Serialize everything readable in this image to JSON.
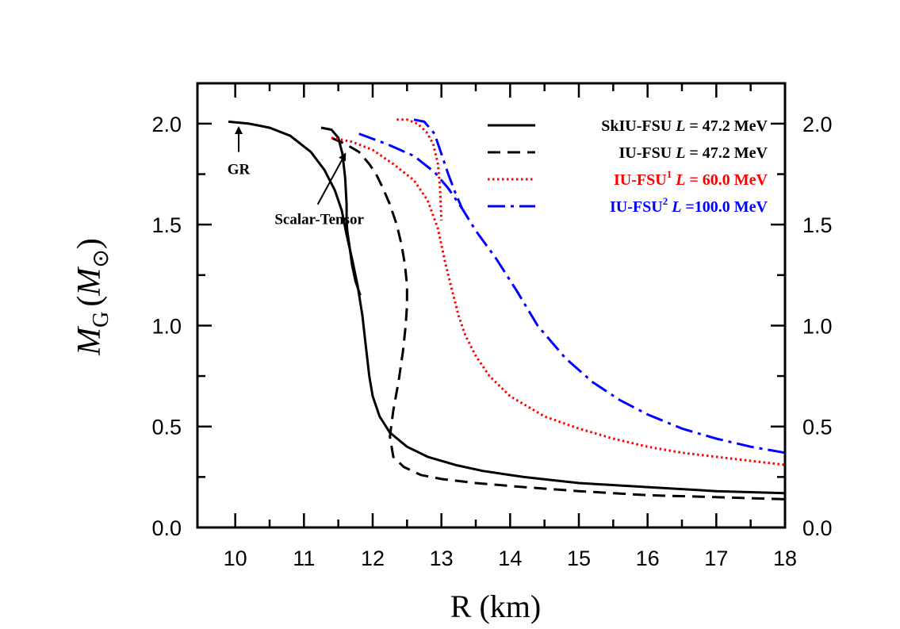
{
  "chart_data": {
    "type": "line",
    "title": "",
    "xlabel": "R (km)",
    "ylabel_main": "M",
    "ylabel_sub": "G",
    "ylabel_unit_open": "(",
    "ylabel_unit_main": "M",
    "ylabel_unit_symbol": "⊙",
    "ylabel_unit_close": ")",
    "xlim": [
      9.45,
      18
    ],
    "ylim": [
      0,
      2.2
    ],
    "xticks": [
      10,
      11,
      12,
      13,
      14,
      15,
      16,
      17,
      18
    ],
    "xtick_labels": [
      "10",
      "11",
      "12",
      "13",
      "14",
      "15",
      "16",
      "17",
      "18"
    ],
    "yticks": [
      0,
      0.5,
      1.0,
      1.5,
      2.0
    ],
    "ytick_labels": [
      "0.0",
      "0.5",
      "1.0",
      "1.5",
      "2.0"
    ],
    "grid": false,
    "legend_position": "top-right",
    "series": [
      {
        "name": "SkIU-FSU GR",
        "legend_prefix": "SkIU-FSU ",
        "legend_italic": "L",
        "legend_suffix": " = 47.2  MeV",
        "color": "#000000",
        "dash": "solid",
        "x": [
          9.9,
          10.2,
          10.5,
          10.8,
          11.1,
          11.3,
          11.45,
          11.55,
          11.62,
          11.7,
          11.78,
          11.85,
          11.9,
          11.95,
          12.0,
          12.1,
          12.25,
          12.5,
          12.8,
          13.2,
          13.6,
          14.2,
          15.0,
          16.0,
          17.0,
          18.0
        ],
        "y": [
          2.01,
          2.0,
          1.98,
          1.94,
          1.86,
          1.77,
          1.67,
          1.57,
          1.45,
          1.33,
          1.2,
          1.05,
          0.9,
          0.75,
          0.65,
          0.55,
          0.47,
          0.4,
          0.35,
          0.31,
          0.28,
          0.25,
          0.22,
          0.2,
          0.18,
          0.17
        ]
      },
      {
        "name": "SkIU-FSU Scalar-Tensor",
        "legend_prefix": "",
        "legend_italic": "",
        "legend_suffix": "",
        "color": "#000000",
        "dash": "solid",
        "x": [
          11.25,
          11.4,
          11.5,
          11.56,
          11.6,
          11.62,
          11.62,
          11.63,
          11.66,
          11.7,
          11.75,
          11.82
        ],
        "y": [
          1.98,
          1.97,
          1.93,
          1.85,
          1.73,
          1.6,
          1.52,
          1.47,
          1.4,
          1.3,
          1.22,
          1.15
        ]
      },
      {
        "name": "IU-FSU",
        "legend_prefix": "IU-FSU ",
        "legend_italic": "L",
        "legend_suffix": " = 47.2  MeV",
        "color": "#000000",
        "dash": "16 9",
        "x": [
          11.4,
          11.6,
          11.8,
          11.95,
          12.05,
          12.15,
          12.25,
          12.35,
          12.42,
          12.47,
          12.5,
          12.5,
          12.48,
          12.44,
          12.38,
          12.3,
          12.25,
          12.3,
          12.45,
          12.7,
          13.0,
          13.5,
          14.2,
          15.0,
          16.0,
          17.0,
          18.0
        ],
        "y": [
          1.93,
          1.9,
          1.86,
          1.8,
          1.75,
          1.68,
          1.6,
          1.5,
          1.4,
          1.3,
          1.2,
          1.1,
          1.0,
          0.87,
          0.73,
          0.58,
          0.45,
          0.35,
          0.3,
          0.26,
          0.24,
          0.22,
          0.2,
          0.18,
          0.16,
          0.15,
          0.14
        ]
      },
      {
        "name": "IU-FSU^1",
        "legend_prefix": "IU-FSU",
        "legend_sup": "1",
        "legend_italic": "L",
        "legend_suffix": " = 60.0  MeV",
        "color": "#ff0000",
        "dash": "2.5 3.5",
        "x": [
          11.4,
          11.7,
          12.0,
          12.3,
          12.6,
          12.8,
          12.95,
          13.05,
          13.15,
          13.25,
          13.35,
          13.5,
          13.7,
          14.0,
          14.5,
          15.0,
          15.5,
          16.0,
          16.5,
          17.0,
          17.5,
          18.0
        ],
        "y": [
          1.93,
          1.91,
          1.87,
          1.8,
          1.72,
          1.62,
          1.48,
          1.32,
          1.18,
          1.05,
          0.95,
          0.85,
          0.75,
          0.65,
          0.55,
          0.49,
          0.44,
          0.4,
          0.37,
          0.35,
          0.33,
          0.31
        ]
      },
      {
        "name": "IU-FSU^1 branch",
        "legend_prefix": "",
        "legend_italic": "",
        "legend_suffix": "",
        "color": "#ff0000",
        "dash": "2.5 3.5",
        "x": [
          12.35,
          12.5,
          12.65,
          12.78,
          12.88,
          12.95,
          12.98,
          12.99,
          13.0
        ],
        "y": [
          2.02,
          2.02,
          2.0,
          1.96,
          1.9,
          1.8,
          1.68,
          1.6,
          1.52
        ]
      },
      {
        "name": "IU-FSU^2",
        "legend_prefix": "IU-FSU",
        "legend_sup": "2",
        "legend_italic": "L",
        "legend_suffix": " =100.0 MeV",
        "color": "#0000ff",
        "dash": "22 7 4 7",
        "x": [
          11.8,
          12.2,
          12.6,
          12.9,
          13.1,
          13.3,
          13.5,
          13.8,
          14.1,
          14.4,
          14.8,
          15.2,
          15.6,
          16.0,
          16.5,
          17.0,
          17.5,
          18.0
        ],
        "y": [
          1.95,
          1.9,
          1.84,
          1.76,
          1.68,
          1.58,
          1.47,
          1.33,
          1.17,
          1.0,
          0.84,
          0.72,
          0.63,
          0.56,
          0.49,
          0.44,
          0.4,
          0.37
        ]
      },
      {
        "name": "IU-FSU^2 branch",
        "legend_prefix": "",
        "legend_italic": "",
        "legend_suffix": "",
        "color": "#0000ff",
        "dash": "22 7 4 7",
        "x": [
          12.6,
          12.75,
          12.9,
          13.0,
          13.1,
          13.2,
          13.3
        ],
        "y": [
          2.02,
          2.01,
          1.95,
          1.85,
          1.75,
          1.66,
          1.58
        ]
      }
    ],
    "annotations": [
      {
        "text": "GR",
        "arrow_from": [
          10.05,
          1.86
        ],
        "arrow_to": [
          10.05,
          1.98
        ]
      },
      {
        "text": "Scalar-Tensor",
        "arrow_from": [
          11.2,
          1.6
        ],
        "arrow_to": [
          11.6,
          1.85
        ]
      }
    ]
  }
}
